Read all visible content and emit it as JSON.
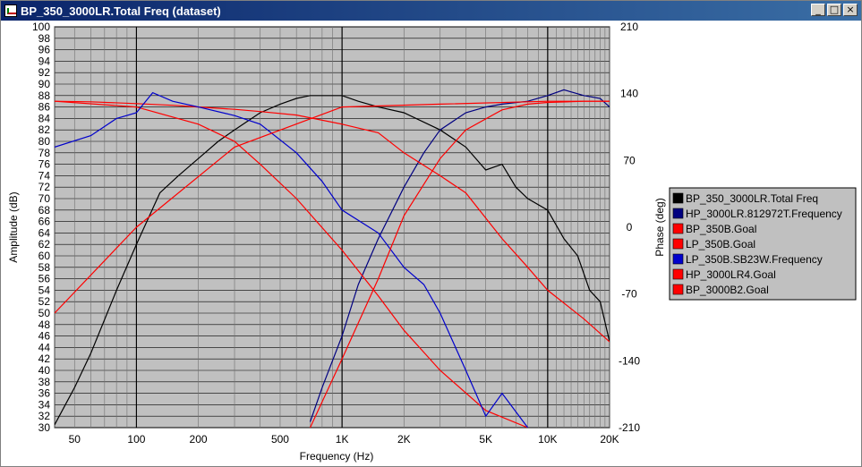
{
  "window": {
    "title": "BP_350_3000LR.Total Freq (dataset)",
    "buttons": {
      "minimize": "_",
      "maximize": "□",
      "close": "×"
    }
  },
  "chart_data": {
    "type": "line",
    "xlabel": "Frequency (Hz)",
    "ylabel": "Amplitude (dB)",
    "y2label": "Phase (deg)",
    "x_scale": "log",
    "xlim": [
      40,
      20000
    ],
    "ylim": [
      30,
      100
    ],
    "y2lim": [
      -210,
      210
    ],
    "grid": true,
    "legend_position": "right",
    "x_ticks": [
      {
        "value": 50,
        "label": "50"
      },
      {
        "value": 100,
        "label": "100"
      },
      {
        "value": 200,
        "label": "200"
      },
      {
        "value": 500,
        "label": "500"
      },
      {
        "value": 1000,
        "label": "1K"
      },
      {
        "value": 2000,
        "label": "2K"
      },
      {
        "value": 5000,
        "label": "5K"
      },
      {
        "value": 10000,
        "label": "10K"
      },
      {
        "value": 20000,
        "label": "20K"
      }
    ],
    "y2_ticks": [
      210,
      140,
      70,
      0,
      -70,
      -140,
      -210
    ],
    "series": [
      {
        "name": "BP_350_3000LR.Total Freq",
        "color": "#000000",
        "style": "solid",
        "axis": "left",
        "x": [
          40,
          50,
          60,
          80,
          100,
          130,
          160,
          200,
          250,
          300,
          400,
          500,
          600,
          700,
          800,
          1000,
          1200,
          1500,
          2000,
          3000,
          4000,
          5000,
          6000,
          7000,
          8000,
          10000,
          12000,
          14000,
          16000,
          18000,
          20000
        ],
        "y": [
          30.5,
          37,
          43,
          54,
          62,
          71,
          74,
          77,
          80,
          82,
          85,
          86.5,
          87.5,
          88,
          88,
          88,
          87,
          86,
          85,
          82,
          79,
          75,
          76,
          72,
          70,
          68,
          63,
          60,
          54,
          52,
          45
        ]
      },
      {
        "name": "HP_3000LR.812972T.Frequency",
        "color": "#000080",
        "style": "solid",
        "axis": "left",
        "x": [
          700,
          800,
          1000,
          1200,
          1500,
          2000,
          2500,
          3000,
          4000,
          5000,
          6000,
          8000,
          10000,
          12000,
          15000,
          18000,
          20000
        ],
        "y": [
          31,
          37,
          46,
          55,
          63,
          72,
          78,
          82,
          85,
          86,
          86.5,
          87,
          88,
          89,
          88,
          87.5,
          86
        ]
      },
      {
        "name": "BP_350B.Goal",
        "color": "#ff0000",
        "style": "solid",
        "axis": "left",
        "x": [
          40,
          60,
          100,
          150,
          200,
          300,
          400,
          600,
          1000,
          1500,
          2000,
          3000,
          4000,
          6000,
          8000,
          10000,
          15000,
          20000
        ],
        "y": [
          87,
          86.9,
          86.6,
          86.3,
          86,
          85.6,
          85.2,
          84.6,
          83,
          81.5,
          78,
          74,
          71,
          63,
          58,
          54,
          49,
          45
        ]
      },
      {
        "name": "LP_350B.Goal",
        "color": "#ff0000",
        "style": "solid",
        "axis": "left",
        "x": [
          40,
          100,
          200,
          300,
          400,
          600,
          1000,
          1500,
          2000,
          3000,
          5000,
          8000
        ],
        "y": [
          87,
          86,
          83,
          80,
          76,
          70,
          61,
          53,
          47,
          40,
          33,
          30
        ]
      },
      {
        "name": "LP_350B.SB23W.Frequency",
        "color": "#0000cc",
        "style": "solid",
        "axis": "left",
        "x": [
          40,
          60,
          80,
          100,
          120,
          150,
          200,
          300,
          400,
          600,
          800,
          1000,
          1500,
          2000,
          2500,
          3000,
          4000,
          5000,
          6000,
          8000
        ],
        "y": [
          79,
          81,
          84,
          85,
          88.5,
          87,
          86,
          84.5,
          83,
          78,
          73,
          68,
          64,
          58,
          55,
          50,
          40,
          32,
          36,
          30
        ]
      },
      {
        "name": "HP_3000LR4.Goal",
        "color": "#ff0000",
        "style": "solid",
        "axis": "left",
        "x": [
          700,
          1000,
          1500,
          2000,
          3000,
          4000,
          6000,
          8000,
          10000,
          15000,
          20000
        ],
        "y": [
          30,
          42,
          56,
          67,
          77,
          82,
          85.5,
          86.5,
          86.8,
          87,
          87
        ]
      },
      {
        "name": "BP_3000B2.Goal",
        "color": "#ff0000",
        "style": "solid",
        "axis": "left",
        "x": [
          40,
          100,
          300,
          1000,
          3000,
          10000,
          20000
        ],
        "y": [
          50,
          65,
          79,
          86,
          86.5,
          87,
          87
        ]
      }
    ]
  }
}
